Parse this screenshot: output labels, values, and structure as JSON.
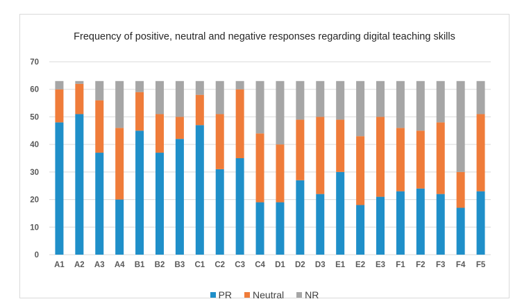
{
  "chart_data": {
    "type": "bar",
    "stacked": true,
    "title": "Frequency of positive, neutral and negative responses regarding digital teaching skills",
    "xlabel": "",
    "ylabel": "",
    "ylim": [
      0,
      70
    ],
    "yticks": [
      0,
      10,
      20,
      30,
      40,
      50,
      60,
      70
    ],
    "grid": true,
    "legend_position": "bottom",
    "categories": [
      "A1",
      "A2",
      "A3",
      "A4",
      "B1",
      "B2",
      "B3",
      "C1",
      "C2",
      "C3",
      "C4",
      "D1",
      "D2",
      "D3",
      "E1",
      "E2",
      "E3",
      "F1",
      "F2",
      "F3",
      "F4",
      "F5"
    ],
    "series": [
      {
        "name": "PR",
        "color": "#1f8fc9",
        "values": [
          48,
          51,
          37,
          20,
          45,
          37,
          42,
          47,
          31,
          35,
          19,
          19,
          27,
          22,
          30,
          18,
          21,
          23,
          24,
          22,
          17,
          23
        ]
      },
      {
        "name": "Neutral",
        "color": "#ef7c3a",
        "values": [
          12,
          11,
          19,
          26,
          14,
          14,
          8,
          11,
          20,
          25,
          25,
          21,
          22,
          28,
          19,
          25,
          29,
          23,
          21,
          26,
          13,
          28
        ]
      },
      {
        "name": "NR",
        "color": "#a6a6a6",
        "values": [
          3,
          1,
          7,
          17,
          4,
          12,
          13,
          5,
          12,
          3,
          19,
          23,
          14,
          13,
          14,
          20,
          13,
          17,
          18,
          15,
          33,
          12
        ]
      }
    ]
  }
}
